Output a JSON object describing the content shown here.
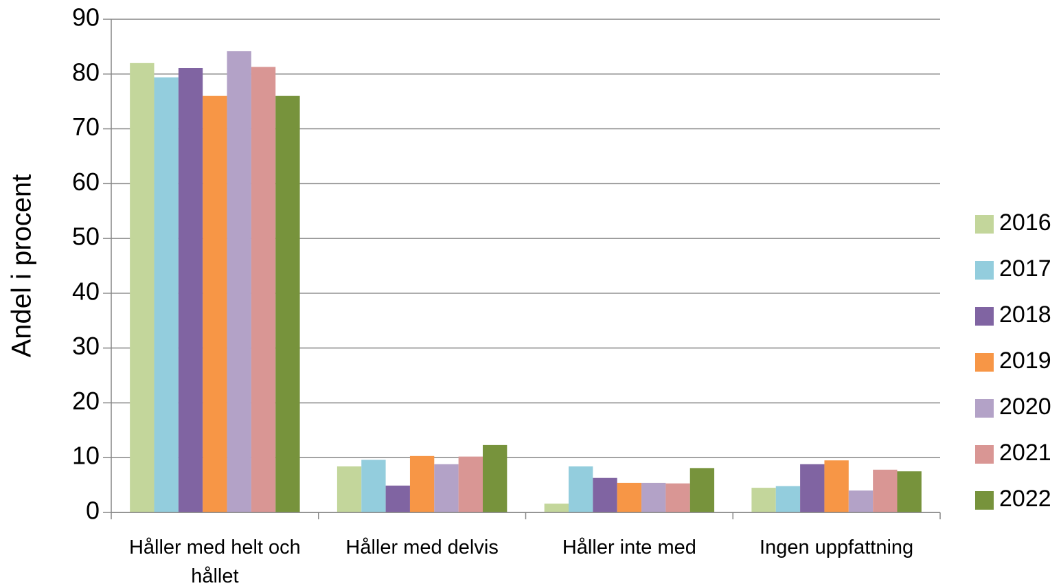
{
  "chart_data": {
    "type": "bar",
    "ylabel": "Andel i procent",
    "categories": [
      "Håller med helt och hållet",
      "Håller med delvis",
      "Håller inte med",
      "Ingen uppfattning"
    ],
    "series": [
      {
        "name": "2016",
        "color": "#c3d69b",
        "values": [
          82.0,
          8.4,
          1.6,
          4.5
        ]
      },
      {
        "name": "2017",
        "color": "#93cddd",
        "values": [
          79.4,
          9.6,
          8.4,
          4.8
        ]
      },
      {
        "name": "2018",
        "color": "#8064a2",
        "values": [
          81.1,
          4.9,
          6.3,
          8.8
        ]
      },
      {
        "name": "2019",
        "color": "#f79646",
        "values": [
          76.0,
          10.3,
          5.4,
          9.5
        ]
      },
      {
        "name": "2020",
        "color": "#b3a2c7",
        "values": [
          84.2,
          8.8,
          5.4,
          4.0
        ]
      },
      {
        "name": "2021",
        "color": "#d99694",
        "values": [
          81.3,
          10.2,
          5.3,
          7.8
        ]
      },
      {
        "name": "2022",
        "color": "#77933c",
        "values": [
          76.0,
          12.3,
          8.1,
          7.5
        ]
      }
    ],
    "ylim": [
      0,
      90
    ],
    "yticks": [
      0,
      10,
      20,
      30,
      40,
      50,
      60,
      70,
      80,
      90
    ],
    "grid": true,
    "legend": "right"
  }
}
